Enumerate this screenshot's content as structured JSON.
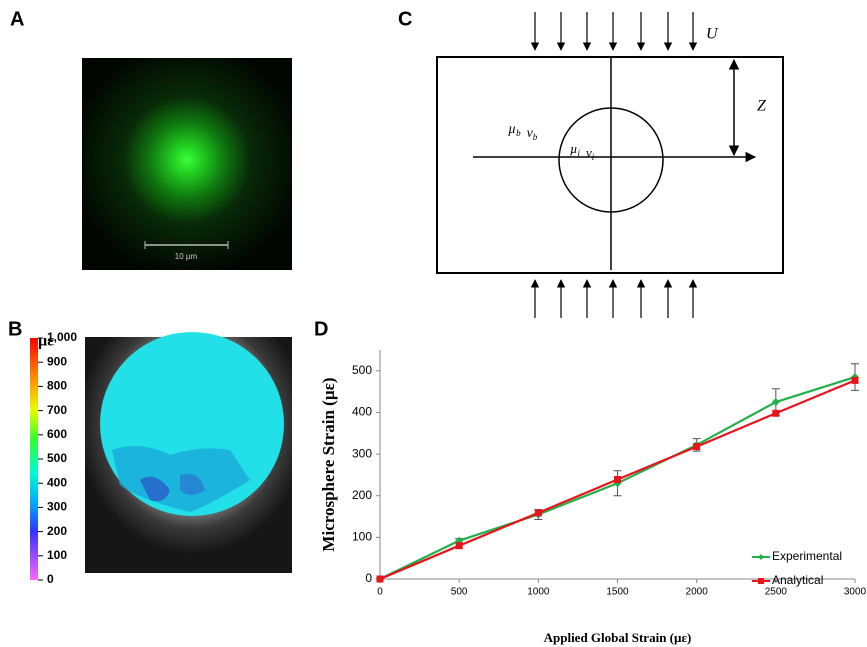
{
  "panel_a": {
    "label": "A",
    "scale_bar": "10 µm"
  },
  "panel_b": {
    "label": "B",
    "colorbar_title": "µε",
    "colorbar_ticks": [
      0,
      100,
      200,
      300,
      400,
      500,
      600,
      700,
      800,
      900,
      {
        "value": 1000,
        "label": "1,000"
      }
    ]
  },
  "panel_c": {
    "label": "C",
    "load": "U",
    "depth": "Z",
    "matrix_props": [
      {
        "symbol": "µ",
        "sub": "b"
      },
      {
        "symbol": "ν",
        "sub": "b"
      }
    ],
    "inclusion_props": [
      {
        "symbol": "µ",
        "sub": "i"
      },
      {
        "symbol": "ν",
        "sub": "i"
      }
    ]
  },
  "chart_data": {
    "type": "line",
    "panel_label": "D",
    "x_label": "Applied  Global Strain (µε)",
    "y_label": "Microsphere Strain (µε)",
    "x": [
      0,
      500,
      1000,
      1500,
      2000,
      2500,
      3000
    ],
    "series": [
      {
        "name": "Experimental",
        "color": "#22b04a",
        "marker": "diamond",
        "values": [
          0,
          92,
          155,
          230,
          322,
          425,
          485
        ],
        "errors": [
          0,
          5,
          12,
          30,
          15,
          32,
          32
        ]
      },
      {
        "name": "Analytical",
        "color": "#e8141b",
        "marker": "square",
        "values": [
          0,
          80,
          159,
          239,
          318,
          398,
          477
        ]
      }
    ],
    "xlim": [
      0,
      3000
    ],
    "ylim": [
      0,
      550
    ],
    "xticks": [
      0,
      500,
      1000,
      1500,
      2000,
      2500,
      3000
    ],
    "yticks": [
      0,
      100,
      200,
      300,
      400,
      500
    ],
    "legend": "lower right"
  }
}
